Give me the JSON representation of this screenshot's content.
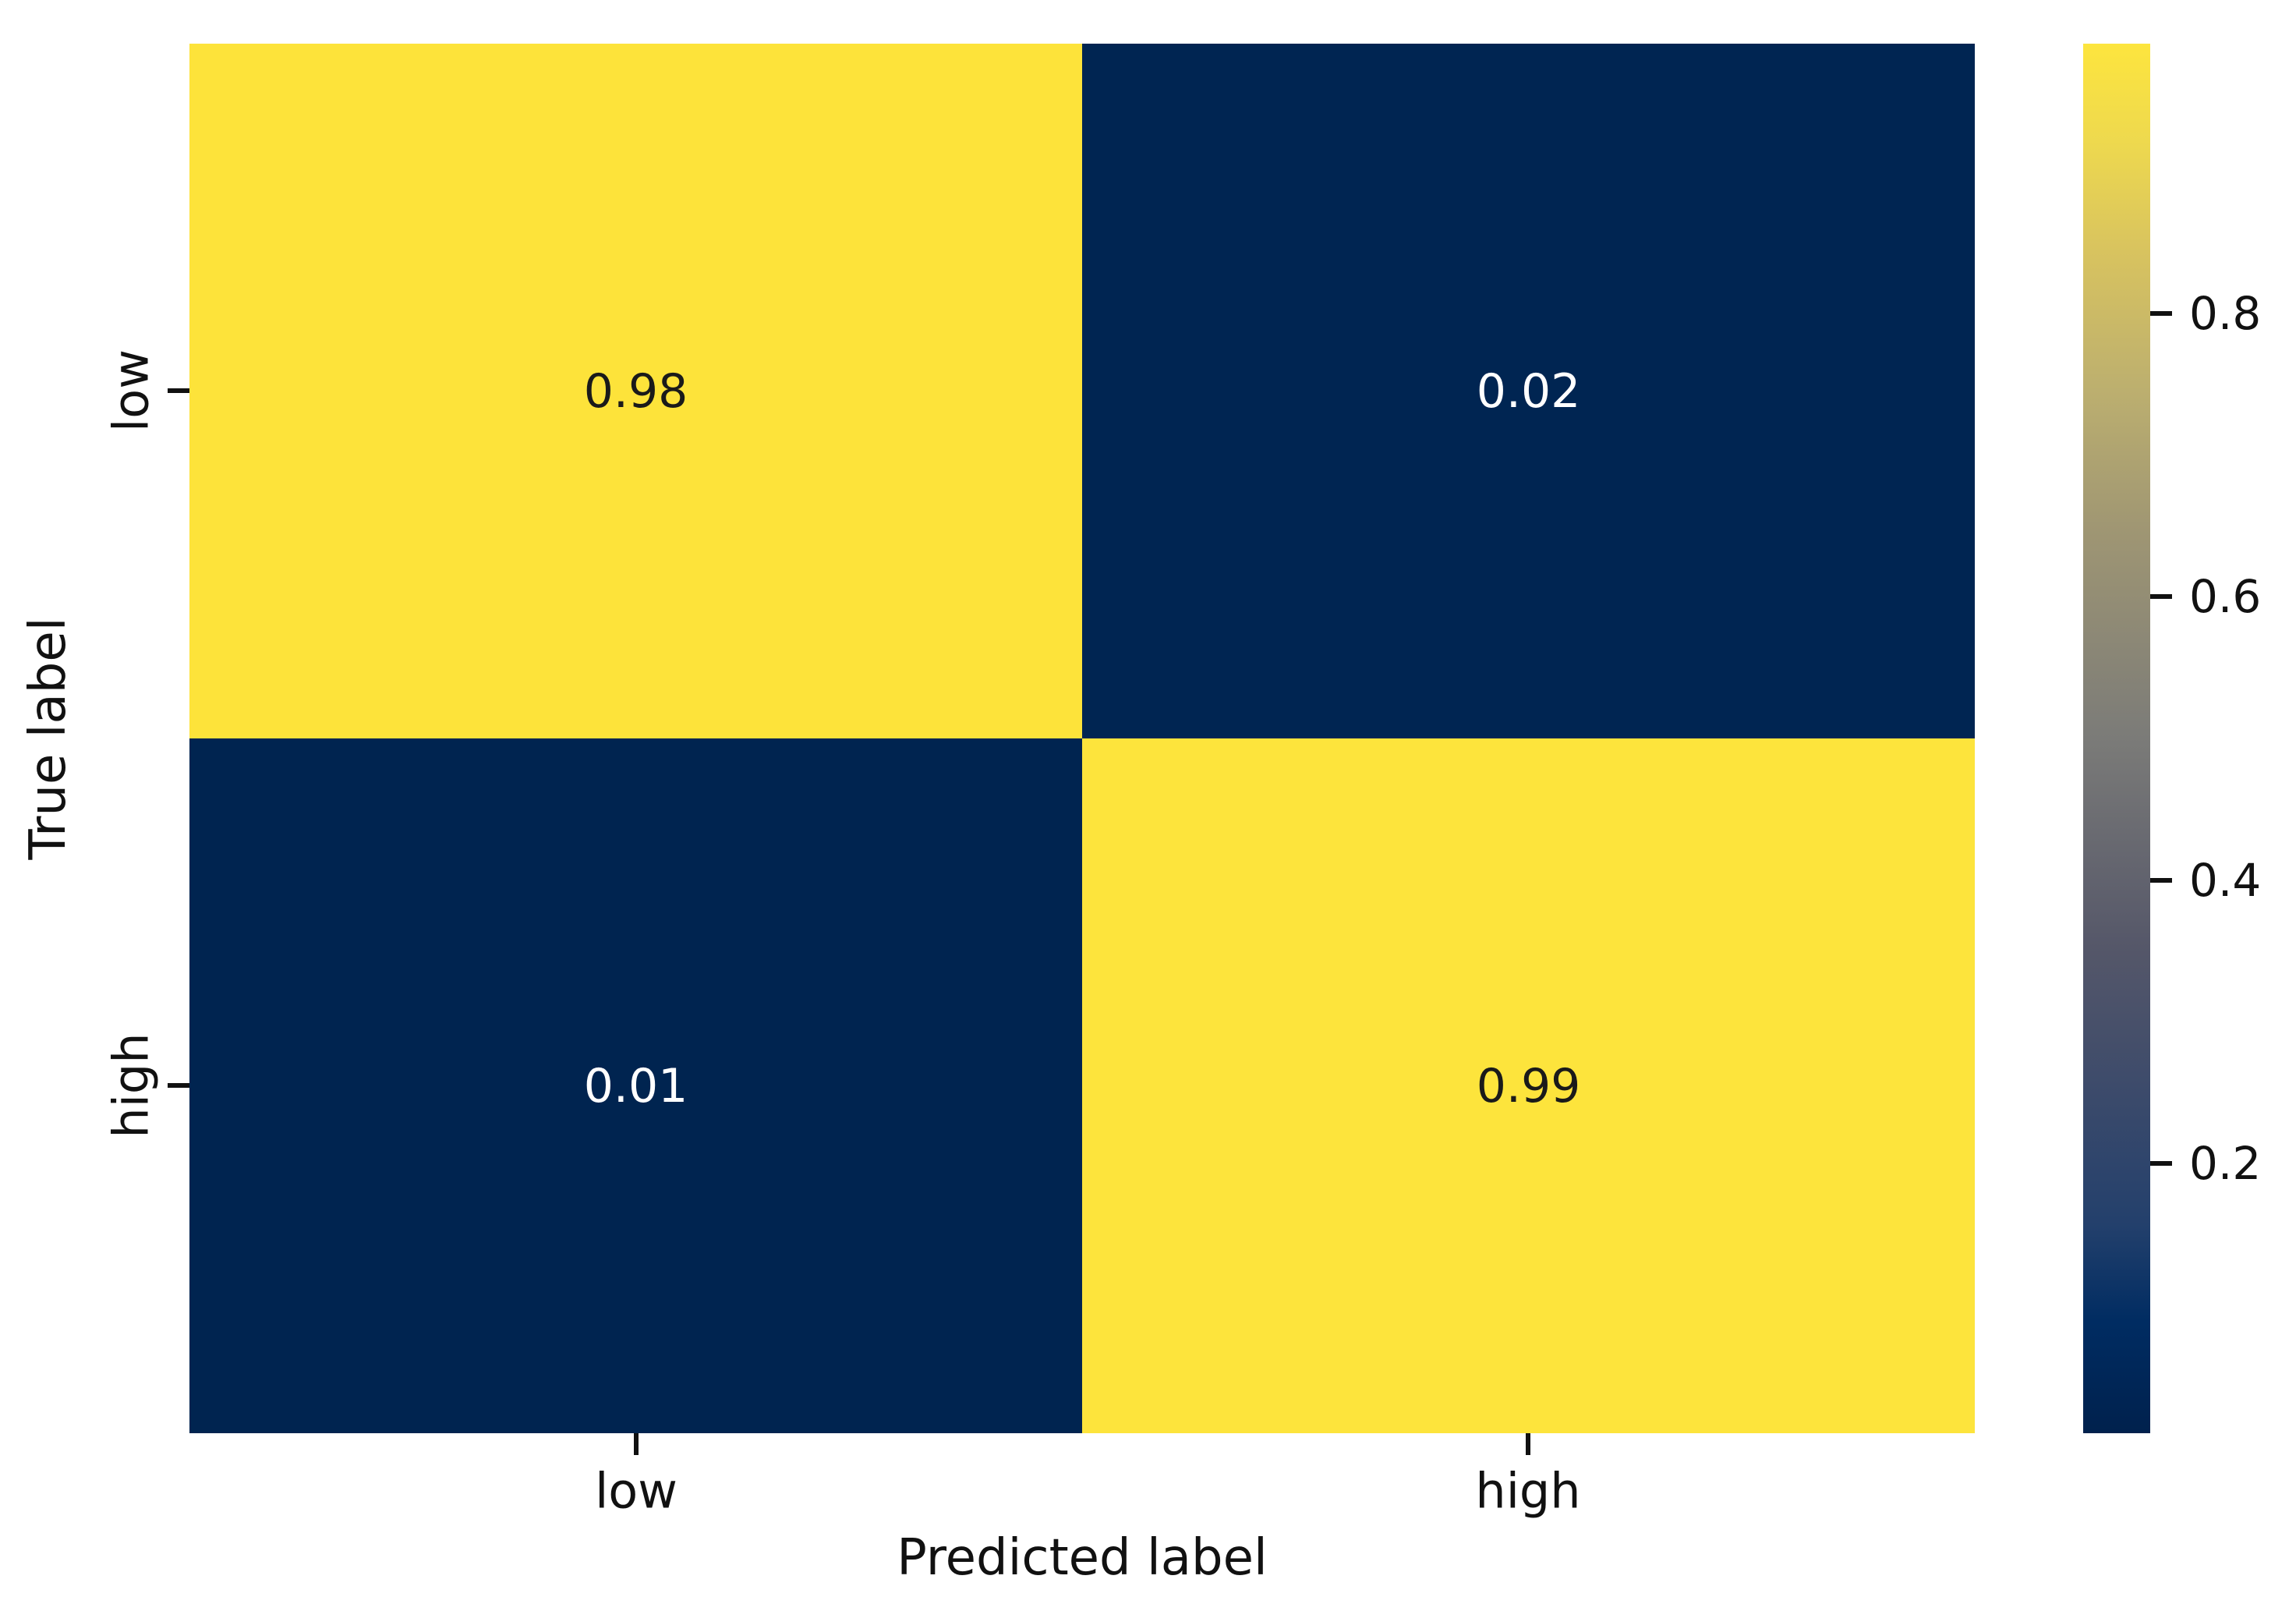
{
  "chart_data": {
    "type": "heatmap",
    "subtype": "confusion-matrix",
    "xlabel": "Predicted label",
    "ylabel": "True label",
    "x_categories": [
      "low",
      "high"
    ],
    "y_categories": [
      "low",
      "high"
    ],
    "matrix": [
      [
        0.98,
        0.02
      ],
      [
        0.01,
        0.99
      ]
    ],
    "colormap": "cividis",
    "grid": false,
    "cells": [
      {
        "true": "low",
        "pred": "low",
        "value": 0.98,
        "label": "0.98",
        "bg": "#fde33a",
        "fg": "#1a1a1a"
      },
      {
        "true": "low",
        "pred": "high",
        "value": 0.02,
        "label": "0.02",
        "bg": "#002552",
        "fg": "#ffffff"
      },
      {
        "true": "high",
        "pred": "low",
        "value": 0.01,
        "label": "0.01",
        "bg": "#002450",
        "fg": "#ffffff"
      },
      {
        "true": "high",
        "pred": "high",
        "value": 0.99,
        "label": "0.99",
        "bg": "#fde43c",
        "fg": "#1a1a1a"
      }
    ],
    "colorbar": {
      "vmin": 0.01,
      "vmax": 0.99,
      "ticks": [
        0.8,
        0.6,
        0.4,
        0.2
      ],
      "tick_labels": [
        "0.8",
        "0.6",
        "0.4",
        "0.2"
      ],
      "gradient_stops": [
        {
          "pos": 0.0,
          "color": "#00214d"
        },
        {
          "pos": 0.08,
          "color": "#002c62"
        },
        {
          "pos": 0.15,
          "color": "#23406c"
        },
        {
          "pos": 0.25,
          "color": "#3d4b6b"
        },
        {
          "pos": 0.35,
          "color": "#555769"
        },
        {
          "pos": 0.5,
          "color": "#7b7b78"
        },
        {
          "pos": 0.65,
          "color": "#9f9673"
        },
        {
          "pos": 0.75,
          "color": "#bcaf6f"
        },
        {
          "pos": 0.85,
          "color": "#d8c35f"
        },
        {
          "pos": 0.93,
          "color": "#eed94e"
        },
        {
          "pos": 1.0,
          "color": "#fde53e"
        }
      ]
    },
    "background_color": "#ffffff",
    "text_color": "#111111"
  }
}
